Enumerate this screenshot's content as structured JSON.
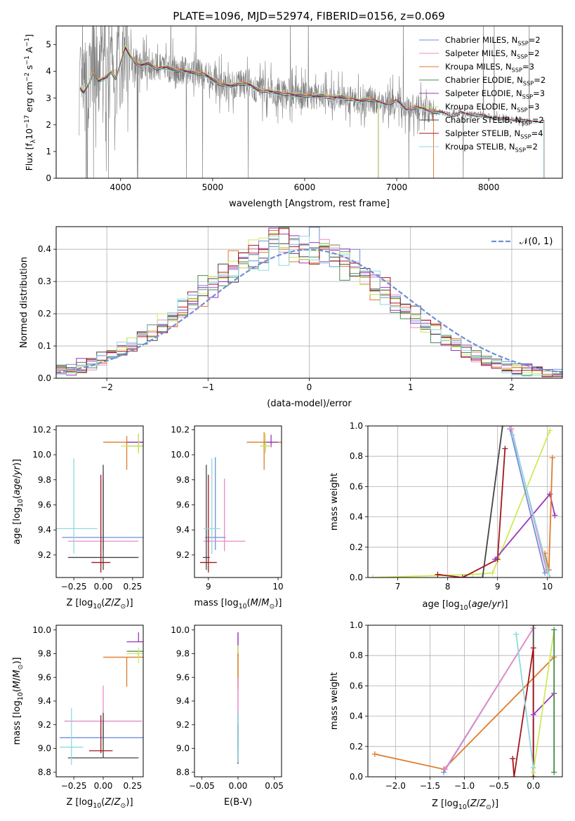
{
  "figure": {
    "title": "PLATE=1096, MJD=52974, FIBERID=0156, z=0.069"
  },
  "colors": {
    "chabrier_miles": "#6f8fd8",
    "salpeter_miles": "#e88cc8",
    "kroupa_miles": "#e07b2a",
    "chabrier_elodie": "#4a8a56",
    "salpeter_elodie": "#9a36b8",
    "kroupa_elodie": "#cdea5a",
    "chabrier_stelib": "#444444",
    "salpeter_stelib": "#a3151b",
    "kroupa_stelib": "#8ed9e0",
    "data": "#808080",
    "normal": "#6f8fd8",
    "grid": "#b0b0b0"
  },
  "chart_data": [
    {
      "id": "spectrum",
      "type": "line",
      "title": "PLATE=1096, MJD=52974, FIBERID=0156, z=0.069",
      "xlabel": "wavelength [Angstrom, rest frame]",
      "ylabel_parts": [
        "Flux [f",
        "λ",
        "10",
        "−17",
        " erg cm",
        "−2",
        " s",
        "−1",
        " A",
        "−1",
        "]"
      ],
      "xlim": [
        3300,
        8800
      ],
      "ylim": [
        0,
        5.7
      ],
      "xticks": [
        4000,
        5000,
        6000,
        7000,
        8000
      ],
      "yticks": [
        0,
        1,
        2,
        3,
        4,
        5
      ],
      "grid": false,
      "legend_position": "top-right",
      "continuum": {
        "x": [
          3550,
          3600,
          3650,
          3700,
          3750,
          3800,
          3850,
          3900,
          3950,
          4000,
          4050,
          4100,
          4200,
          4300,
          4400,
          4500,
          4600,
          4700,
          4800,
          4900,
          5000,
          5100,
          5200,
          5300,
          5400,
          5500,
          5600,
          5700,
          5800,
          5900,
          6000,
          6100,
          6200,
          6300,
          6400,
          6500,
          6600,
          6700,
          6800,
          6900,
          7000,
          7100,
          7200,
          7300,
          7400,
          7500,
          7600,
          7700,
          7800,
          7900,
          8000,
          8100,
          8200,
          8300,
          8400
        ],
        "y": [
          3.4,
          3.2,
          3.5,
          4.0,
          3.6,
          3.7,
          3.8,
          4.0,
          3.7,
          4.3,
          4.9,
          4.6,
          4.2,
          4.3,
          4.1,
          4.15,
          4.05,
          4.0,
          3.95,
          3.9,
          3.7,
          3.5,
          3.45,
          3.55,
          3.5,
          3.3,
          3.25,
          3.2,
          3.15,
          3.1,
          3.1,
          3.05,
          3.1,
          3.0,
          3.05,
          2.95,
          2.9,
          2.95,
          2.85,
          2.8,
          2.9,
          2.6,
          2.65,
          2.6,
          2.5,
          2.45,
          2.35,
          2.45,
          2.4,
          2.35,
          2.3,
          2.25,
          2.2,
          2.2,
          2.15
        ]
      },
      "series": [
        {
          "name": "Chabrier MILES, N_SSP=2",
          "base": "Chabrier MILES, N",
          "sub": "SSP",
          "tail": "=2",
          "color_key": "chabrier_miles",
          "x_end": 7400,
          "offset": 0.02
        },
        {
          "name": "Salpeter MILES, N_SSP=2",
          "base": "Salpeter MILES, N",
          "sub": "SSP",
          "tail": "=2",
          "color_key": "salpeter_miles",
          "x_end": 7400,
          "offset": 0.0
        },
        {
          "name": "Kroupa MILES, N_SSP=3",
          "base": "Kroupa MILES, N",
          "sub": "SSP",
          "tail": "=3",
          "color_key": "kroupa_miles",
          "x_end": 7400,
          "offset": 0.03
        },
        {
          "name": "Chabrier ELODIE, N_SSP=2",
          "base": "Chabrier ELODIE, N",
          "sub": "SSP",
          "tail": "=2",
          "color_key": "chabrier_elodie",
          "x_end": 6800,
          "offset": -0.02
        },
        {
          "name": "Salpeter ELODIE, N_SSP=3",
          "base": "Salpeter ELODIE, N",
          "sub": "SSP",
          "tail": "=3",
          "color_key": "salpeter_elodie",
          "x_end": 6800,
          "offset": 0.01
        },
        {
          "name": "Kroupa ELODIE, N_SSP=3",
          "base": "Kroupa ELODIE, N",
          "sub": "SSP",
          "tail": "=3",
          "color_key": "kroupa_elodie",
          "x_end": 6800,
          "offset": 0.06
        },
        {
          "name": "Chabrier STELIB, N_SSP=2",
          "base": "Chabrier STELIB, N",
          "sub": "SSP",
          "tail": "=2",
          "color_key": "chabrier_stelib",
          "x_end": 8600,
          "offset": -0.03
        },
        {
          "name": "Salpeter STELIB, N_SSP=4",
          "base": "Salpeter STELIB, N",
          "sub": "SSP",
          "tail": "=4",
          "color_key": "salpeter_stelib",
          "x_end": 8600,
          "offset": 0.0
        },
        {
          "name": "Kroupa STELIB, N_SSP=2",
          "base": "Kroupa STELIB, N",
          "sub": "SSP",
          "tail": "=2",
          "color_key": "kroupa_stelib",
          "x_end": 8600,
          "offset": -0.05
        }
      ]
    },
    {
      "id": "residuals",
      "type": "line",
      "xlabel": "(data-model)/error",
      "ylabel": "Normed distribution",
      "xlim": [
        -2.5,
        2.5
      ],
      "ylim": [
        0,
        0.47
      ],
      "xticks": [
        -2,
        -1,
        0,
        1,
        2
      ],
      "ytick_labels": [
        "0.0",
        "0.1",
        "0.2",
        "0.3",
        "0.4"
      ],
      "yticks": [
        0,
        0.1,
        0.2,
        0.3,
        0.4
      ],
      "grid": true,
      "legend_position": "top-right",
      "normal_label": "𝒩(0, 1)",
      "bin_width": 0.1,
      "bin_start": -2.5
    },
    {
      "id": "age_vs_z",
      "type": "scatter",
      "xlabel": "Z [log10(Z/Z⊙)]",
      "ylabel": "age  [log10(age/yr)]",
      "xlim": [
        -0.4,
        0.34
      ],
      "ylim": [
        9.02,
        10.23
      ],
      "xticks": [
        -0.25,
        0.0,
        0.25
      ],
      "xtick_labels": [
        "−0.25",
        "0.00",
        "0.25"
      ],
      "yticks": [
        9.2,
        9.4,
        9.6,
        9.8,
        10.0,
        10.2
      ],
      "ytick_labels": [
        "9.2",
        "9.4",
        "9.6",
        "9.8",
        "10.0",
        "10.2"
      ],
      "points": [
        {
          "color_key": "chabrier_miles",
          "x": 0.0,
          "xerr": 0.35,
          "y": 9.34,
          "yerr_lo": 0.1,
          "yerr_hi": 0.46
        },
        {
          "color_key": "salpeter_miles",
          "x": 0.0,
          "xerr": 0.3,
          "y": 9.31,
          "yerr_lo": 0.08,
          "yerr_hi": 0.55
        },
        {
          "color_key": "kroupa_miles",
          "x": 0.2,
          "xerr": 0.2,
          "y": 10.1,
          "yerr_lo": 0.22,
          "yerr_hi": 0.05
        },
        {
          "color_key": "chabrier_elodie",
          "x": 0.3,
          "xerr": 0.1,
          "y": 10.07,
          "yerr_lo": 0.05,
          "yerr_hi": 0.05
        },
        {
          "color_key": "salpeter_elodie",
          "x": 0.3,
          "xerr": 0.1,
          "y": 10.1,
          "yerr_lo": 0.04,
          "yerr_hi": 0.06
        },
        {
          "color_key": "kroupa_elodie",
          "x": 0.3,
          "xerr": 0.15,
          "y": 10.07,
          "yerr_lo": 0.06,
          "yerr_hi": 0.1
        },
        {
          "color_key": "chabrier_stelib",
          "x": 0.0,
          "xerr": 0.3,
          "y": 9.18,
          "yerr_lo": 0.1,
          "yerr_hi": 0.74
        },
        {
          "color_key": "salpeter_stelib",
          "x": -0.02,
          "xerr": 0.08,
          "y": 9.14,
          "yerr_lo": 0.08,
          "yerr_hi": 0.7
        },
        {
          "color_key": "kroupa_stelib",
          "x": -0.25,
          "xerr": 0.2,
          "y": 9.41,
          "yerr_lo": 0.2,
          "yerr_hi": 0.56
        }
      ]
    },
    {
      "id": "age_vs_mass",
      "type": "scatter",
      "xlabel": "mass [log10(M/M⊙)]",
      "xlim": [
        8.8,
        10.05
      ],
      "ylim": [
        9.02,
        10.23
      ],
      "xticks": [
        9,
        10
      ],
      "xtick_labels": [
        "9",
        "10"
      ],
      "yticks": [
        9.2,
        9.4,
        9.6,
        9.8,
        10.0,
        10.2
      ],
      "ytick_labels": [
        "9.2",
        "9.4",
        "9.6",
        "9.8",
        "10.0",
        "10.2"
      ],
      "points": [
        {
          "color_key": "chabrier_miles",
          "x": 9.1,
          "xerr": 0.15,
          "y": 9.34,
          "yerr_lo": 0.1,
          "yerr_hi": 0.64
        },
        {
          "color_key": "salpeter_miles",
          "x": 9.23,
          "xerr": 0.3,
          "y": 9.31,
          "yerr_lo": 0.08,
          "yerr_hi": 0.5
        },
        {
          "color_key": "kroupa_miles",
          "x": 9.8,
          "xerr": 0.25,
          "y": 10.1,
          "yerr_lo": 0.22,
          "yerr_hi": 0.08
        },
        {
          "color_key": "chabrier_elodie",
          "x": 9.82,
          "xerr": 0.06,
          "y": 10.07,
          "yerr_lo": 0.05,
          "yerr_hi": 0.05
        },
        {
          "color_key": "salpeter_elodie",
          "x": 9.9,
          "xerr": 0.1,
          "y": 10.1,
          "yerr_lo": 0.04,
          "yerr_hi": 0.06
        },
        {
          "color_key": "kroupa_elodie",
          "x": 9.82,
          "xerr": 0.08,
          "y": 10.07,
          "yerr_lo": 0.06,
          "yerr_hi": 0.1
        },
        {
          "color_key": "chabrier_stelib",
          "x": 8.97,
          "xerr": 0.05,
          "y": 9.18,
          "yerr_lo": 0.1,
          "yerr_hi": 0.74
        },
        {
          "color_key": "salpeter_stelib",
          "x": 9.0,
          "xerr": 0.12,
          "y": 9.14,
          "yerr_lo": 0.08,
          "yerr_hi": 0.7
        },
        {
          "color_key": "kroupa_stelib",
          "x": 9.05,
          "xerr": 0.12,
          "y": 9.41,
          "yerr_lo": 0.2,
          "yerr_hi": 0.56
        }
      ]
    },
    {
      "id": "weight_vs_age",
      "type": "line",
      "xlabel": "age  [log10(age/yr)]",
      "ylabel": "mass weight",
      "xlim": [
        6.4,
        10.3
      ],
      "ylim": [
        0,
        1
      ],
      "xticks": [
        7,
        8,
        9,
        10
      ],
      "yticks": [
        0,
        0.2,
        0.4,
        0.6,
        0.8,
        1.0
      ],
      "ytick_labels": [
        "0.0",
        "0.2",
        "0.4",
        "0.6",
        "0.8",
        "1.0"
      ],
      "grid": true,
      "series": [
        {
          "color_key": "kroupa_elodie",
          "x": [
            6.5,
            8.5,
            8.9,
            10.05
          ],
          "y": [
            0.0,
            0.02,
            0.03,
            0.97
          ]
        },
        {
          "color_key": "chabrier_stelib",
          "x": [
            8.35,
            8.7,
            9.1
          ],
          "y": [
            0.0,
            0.0,
            1.0
          ]
        },
        {
          "color_key": "salpeter_stelib",
          "x": [
            7.8,
            8.3,
            9.0,
            9.15
          ],
          "y": [
            0.02,
            0.0,
            0.12,
            0.85
          ]
        },
        {
          "color_key": "salpeter_elodie",
          "x": [
            8.95,
            10.05,
            10.15
          ],
          "y": [
            0.12,
            0.55,
            0.41
          ]
        },
        {
          "color_key": "chabrier_miles",
          "x": [
            9.25,
            9.95
          ],
          "y": [
            0.98,
            0.03
          ]
        },
        {
          "color_key": "salpeter_miles",
          "x": [
            9.28,
            9.98
          ],
          "y": [
            0.98,
            0.05
          ]
        },
        {
          "color_key": "kroupa_miles",
          "x": [
            9.95,
            10.03,
            10.1
          ],
          "y": [
            0.16,
            0.05,
            0.79
          ]
        },
        {
          "color_key": "kroupa_stelib",
          "x": [
            9.3,
            10.0,
            10.05
          ],
          "y": [
            0.94,
            0.06,
            0.0
          ]
        }
      ]
    },
    {
      "id": "mass_vs_z",
      "type": "scatter",
      "xlabel": "Z [log10(Z/Z⊙)]",
      "ylabel": "mass [log10(M/M⊙)]",
      "xlim": [
        -0.4,
        0.34
      ],
      "ylim": [
        8.76,
        10.04
      ],
      "xticks": [
        -0.25,
        0.0,
        0.25
      ],
      "xtick_labels": [
        "−0.25",
        "0.00",
        "0.25"
      ],
      "yticks": [
        8.8,
        9.0,
        9.2,
        9.4,
        9.6,
        9.8,
        10.0
      ],
      "ytick_labels": [
        "8.8",
        "9.0",
        "9.2",
        "9.4",
        "9.6",
        "9.8",
        "10.0"
      ],
      "points": [
        {
          "color_key": "chabrier_miles",
          "x": 0.0,
          "xerr": 0.37,
          "y": 9.09,
          "yerr_lo": 0.0,
          "yerr_hi": 0.15
        },
        {
          "color_key": "salpeter_miles",
          "x": 0.0,
          "xerr": 0.33,
          "y": 9.23,
          "yerr_lo": 0.2,
          "yerr_hi": 0.3
        },
        {
          "color_key": "kroupa_miles",
          "x": 0.2,
          "xerr": 0.2,
          "y": 9.77,
          "yerr_lo": 0.25,
          "yerr_hi": 0.0
        },
        {
          "color_key": "chabrier_elodie",
          "x": 0.3,
          "xerr": 0.1,
          "y": 9.82,
          "yerr_lo": 0.05,
          "yerr_hi": 0.0
        },
        {
          "color_key": "salpeter_elodie",
          "x": 0.3,
          "xerr": 0.1,
          "y": 9.9,
          "yerr_lo": 0.0,
          "yerr_hi": 0.08
        },
        {
          "color_key": "kroupa_elodie",
          "x": 0.3,
          "xerr": 0.1,
          "y": 9.8,
          "yerr_lo": 0.08,
          "yerr_hi": 0.05
        },
        {
          "color_key": "chabrier_stelib",
          "x": 0.0,
          "xerr": 0.3,
          "y": 8.92,
          "yerr_lo": 0.0,
          "yerr_hi": 0.38
        },
        {
          "color_key": "salpeter_stelib",
          "x": -0.02,
          "xerr": 0.1,
          "y": 8.98,
          "yerr_lo": 0.02,
          "yerr_hi": 0.3
        },
        {
          "color_key": "kroupa_stelib",
          "x": -0.27,
          "xerr": 0.1,
          "y": 9.01,
          "yerr_lo": 0.15,
          "yerr_hi": 0.33
        }
      ]
    },
    {
      "id": "mass_vs_ebv",
      "type": "scatter",
      "xlabel": "E(B-V)",
      "xlim": [
        -0.06,
        0.06
      ],
      "ylim": [
        8.76,
        10.04
      ],
      "xticks": [
        -0.05,
        0.0,
        0.05
      ],
      "xtick_labels": [
        "−0.05",
        "0.00",
        "0.05"
      ],
      "yticks": [
        8.8,
        9.0,
        9.2,
        9.4,
        9.6,
        9.8,
        10.0
      ],
      "ytick_labels": [
        "8.8",
        "9.0",
        "9.2",
        "9.4",
        "9.6",
        "9.8",
        "10.0"
      ],
      "segments": [
        {
          "color_key": "salpeter_elodie",
          "y_lo": 9.78,
          "y_hi": 9.98
        },
        {
          "color_key": "kroupa_elodie",
          "y_lo": 9.55,
          "y_hi": 9.87
        },
        {
          "color_key": "kroupa_miles",
          "y_lo": 9.5,
          "y_hi": 9.8
        },
        {
          "color_key": "salpeter_miles",
          "y_lo": 9.15,
          "y_hi": 9.6
        },
        {
          "color_key": "chabrier_miles",
          "y_lo": 9.0,
          "y_hi": 9.3
        },
        {
          "color_key": "chabrier_stelib",
          "y_lo": 8.87,
          "y_hi": 9.2
        },
        {
          "color_key": "kroupa_stelib",
          "y_lo": 8.88,
          "y_hi": 9.3
        }
      ]
    },
    {
      "id": "weight_vs_z",
      "type": "line",
      "xlabel": "Z [log10(Z/Z⊙)]",
      "ylabel": "mass weight",
      "xlim": [
        -2.4,
        0.42
      ],
      "ylim": [
        0,
        1
      ],
      "xticks": [
        -2.0,
        -1.5,
        -1.0,
        -0.5,
        0.0
      ],
      "xtick_labels": [
        "−2.0",
        "−1.5",
        "−1.0",
        "−0.5",
        "0.0"
      ],
      "yticks": [
        0,
        0.2,
        0.4,
        0.6,
        0.8,
        1.0
      ],
      "ytick_labels": [
        "0.0",
        "0.2",
        "0.4",
        "0.6",
        "0.8",
        "1.0"
      ],
      "grid": true,
      "series": [
        {
          "color_key": "kroupa_miles",
          "x": [
            -2.3,
            -1.3,
            0.3
          ],
          "y": [
            0.15,
            0.05,
            0.79
          ]
        },
        {
          "color_key": "chabrier_miles",
          "x": [
            -1.3,
            0.0
          ],
          "y": [
            0.03,
            0.98
          ]
        },
        {
          "color_key": "salpeter_miles",
          "x": [
            -1.28,
            0.0
          ],
          "y": [
            0.05,
            0.98
          ]
        },
        {
          "color_key": "chabrier_stelib",
          "x": [
            0.0,
            0.0
          ],
          "y": [
            0.0,
            1.0
          ]
        },
        {
          "color_key": "salpeter_stelib",
          "x": [
            -0.3,
            -0.28,
            0.0,
            0.0
          ],
          "y": [
            0.12,
            0.0,
            0.85,
            0.0
          ]
        },
        {
          "color_key": "salpeter_elodie",
          "x": [
            0.0,
            0.3
          ],
          "y": [
            0.41,
            0.55
          ]
        },
        {
          "color_key": "kroupa_elodie",
          "x": [
            0.0,
            0.3,
            0.3
          ],
          "y": [
            0.03,
            0.97,
            0.03
          ]
        },
        {
          "color_key": "chabrier_elodie",
          "x": [
            0.3,
            0.3
          ],
          "y": [
            0.03,
            0.97
          ]
        },
        {
          "color_key": "kroupa_stelib",
          "x": [
            -0.25,
            0.0
          ],
          "y": [
            0.94,
            0.06
          ]
        }
      ]
    }
  ]
}
